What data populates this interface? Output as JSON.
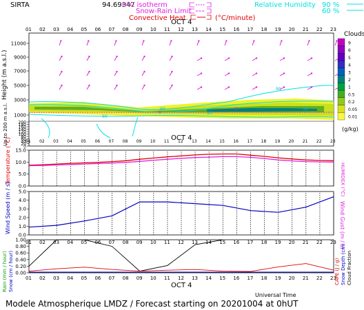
{
  "header": {
    "station": "SIRTA",
    "coords": "94.69347",
    "legend_isotherm": "0°C isotherm",
    "legend_snow_rain": "Snow-Rain Limit",
    "legend_convective": "Convective Heat.",
    "legend_convective_unit": "(°C/minute)",
    "legend_rh": "Relative Humidity",
    "rh_90": "90 %",
    "rh_60": "60 %"
  },
  "hours": [
    "01",
    "02",
    "03",
    "04",
    "05",
    "06",
    "07",
    "08",
    "09",
    "10",
    "11",
    "12",
    "13",
    "14",
    "15",
    "16",
    "17",
    "18",
    "19",
    "20",
    "21",
    "22",
    "23"
  ],
  "date_label": "OCT 4",
  "footer": {
    "universal_time": "Universal Time",
    "title": "Modele Atmospherique LMDZ / Forecast starting on 20201004 at 0hUT"
  },
  "colors": {
    "magenta": "#e020e0",
    "cyan": "#00e0e0",
    "red": "#e00000",
    "blue": "#0000c0",
    "green": "#00a000"
  },
  "chart_data": [
    {
      "type": "heatmap",
      "name": "clouds",
      "ylabel": "Height  (m a.s.l.)",
      "ylabel2": "Up to 200 m a.s.l.",
      "colorbar_title": "Clouds",
      "colorbar_unit": "(g/kg)",
      "colorbar_ticks": [
        "9",
        "6",
        "5",
        "4",
        "3",
        "2",
        "1",
        "0.5",
        "0.2",
        "0.05",
        "0.01"
      ],
      "y_ticks": [
        "11000",
        "9000",
        "7000",
        "5000",
        "3000",
        "1000",
        "200",
        "180",
        "160",
        "140",
        "120",
        "100",
        "80",
        "60",
        "40",
        "20",
        "0"
      ],
      "x_ticks": [
        "01",
        "02",
        "03",
        "04",
        "05",
        "06",
        "07",
        "08",
        "09",
        "10",
        "11",
        "12",
        "13",
        "14",
        "15",
        "16",
        "17",
        "18",
        "19",
        "20",
        "21",
        "22",
        "23"
      ],
      "rh_contour_labels": [
        "60",
        "90",
        "90",
        "90",
        "60"
      ],
      "isotherm_labels": [
        "0",
        "0"
      ]
    },
    {
      "type": "line",
      "name": "temperature",
      "ylabel": "Temperature (°C)",
      "ylabel2": "HUMIDEX (°C)",
      "y_ticks": [
        "15.0",
        "10.0",
        "5.0",
        "0.0"
      ],
      "ylim": [
        0,
        15
      ],
      "x": [
        "01",
        "02",
        "03",
        "04",
        "05",
        "06",
        "07",
        "08",
        "09",
        "10",
        "11",
        "12",
        "13",
        "14",
        "15",
        "16",
        "17",
        "18",
        "19",
        "20",
        "21",
        "22",
        "23"
      ],
      "series": [
        {
          "color": "#e00000",
          "values": [
            8.7,
            8.9,
            9.2,
            9.5,
            9.7,
            9.9,
            10.2,
            10.6,
            11.2,
            11.7,
            12.2,
            12.6,
            13.0,
            13.3,
            13.4,
            13.4,
            12.9,
            12.4,
            11.8,
            11.3,
            10.9,
            10.7,
            10.6
          ]
        },
        {
          "color": "#e020e0",
          "values": [
            8.5,
            8.6,
            8.8,
            9.0,
            9.2,
            9.4,
            9.6,
            9.9,
            10.3,
            10.8,
            11.2,
            11.6,
            11.9,
            12.1,
            12.3,
            12.3,
            12.0,
            11.5,
            10.9,
            10.5,
            10.2,
            10.1,
            10.0
          ]
        }
      ]
    },
    {
      "type": "line",
      "name": "wind",
      "ylabel": "Wind Speed (m / s)",
      "ylabel2": "Wind Gust (m / s)",
      "y_ticks": [
        "5.0",
        "4.0",
        "3.0",
        "2.0",
        "1.0",
        "0.0"
      ],
      "ylim": [
        0,
        5
      ],
      "x": [
        "01",
        "03",
        "05",
        "07",
        "09",
        "11",
        "13",
        "15",
        "17",
        "19",
        "21",
        "23"
      ],
      "series": [
        {
          "color": "#0000c0",
          "values": [
            0.9,
            1.1,
            1.6,
            2.2,
            3.8,
            3.8,
            3.6,
            3.4,
            2.8,
            2.6,
            3.2,
            4.4
          ]
        }
      ]
    },
    {
      "type": "line",
      "name": "precip",
      "ylabel": "Rain (mm / hour)",
      "ylabel2": "Snow (cm / hour)",
      "ylabel3": "CAPE (J / g)",
      "ylabel4": "Snow Depth (cm)",
      "ylabel5": "Cloud Fraction",
      "y_ticks": [
        "1.00",
        "0.80",
        "0.60",
        "0.40",
        "0.20",
        "0.00"
      ],
      "ylim": [
        0,
        1
      ],
      "x_ticks": [
        "01",
        "02",
        "03",
        "04",
        "05",
        "06",
        "07",
        "08",
        "09",
        "10",
        "11",
        "12",
        "13",
        "14",
        "15",
        "16",
        "17",
        "18",
        "19",
        "20",
        "21",
        "22",
        "23"
      ],
      "series": [
        {
          "color": "#000000",
          "x": [
            "01",
            "03",
            "05",
            "07",
            "09",
            "11",
            "13",
            "15"
          ],
          "values": [
            0.2,
            1.0,
            1.0,
            0.8,
            0.05,
            0.22,
            0.85,
            1.0
          ]
        },
        {
          "color": "#e00000",
          "x": [
            "01",
            "03",
            "05",
            "07",
            "09",
            "11",
            "13",
            "15",
            "17",
            "19",
            "21",
            "23"
          ],
          "values": [
            0.05,
            0.12,
            0.17,
            0.1,
            0.05,
            0.08,
            0.1,
            0.05,
            0.04,
            0.18,
            0.28,
            0.08
          ]
        }
      ]
    }
  ]
}
